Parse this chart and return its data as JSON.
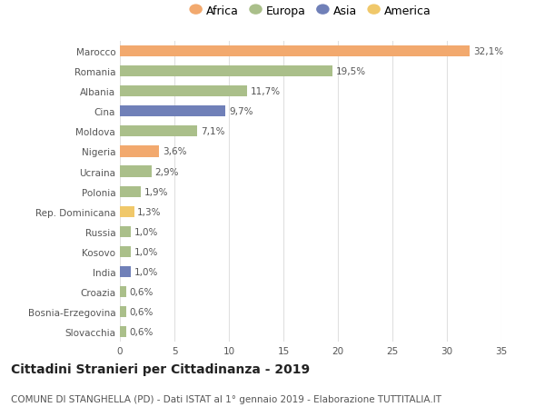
{
  "countries": [
    "Marocco",
    "Romania",
    "Albania",
    "Cina",
    "Moldova",
    "Nigeria",
    "Ucraina",
    "Polonia",
    "Rep. Dominicana",
    "Russia",
    "Kosovo",
    "India",
    "Croazia",
    "Bosnia-Erzegovina",
    "Slovacchia"
  ],
  "values": [
    32.1,
    19.5,
    11.7,
    9.7,
    7.1,
    3.6,
    2.9,
    1.9,
    1.3,
    1.0,
    1.0,
    1.0,
    0.6,
    0.6,
    0.6
  ],
  "labels": [
    "32,1%",
    "19,5%",
    "11,7%",
    "9,7%",
    "7,1%",
    "3,6%",
    "2,9%",
    "1,9%",
    "1,3%",
    "1,0%",
    "1,0%",
    "1,0%",
    "0,6%",
    "0,6%",
    "0,6%"
  ],
  "continents": [
    "Africa",
    "Europa",
    "Europa",
    "Asia",
    "Europa",
    "Africa",
    "Europa",
    "Europa",
    "America",
    "Europa",
    "Europa",
    "Asia",
    "Europa",
    "Europa",
    "Europa"
  ],
  "continent_colors": {
    "Africa": "#F2A96E",
    "Europa": "#AABF8A",
    "Asia": "#7080B8",
    "America": "#F0C86A"
  },
  "legend_order": [
    "Africa",
    "Europa",
    "Asia",
    "America"
  ],
  "title": "Cittadini Stranieri per Cittadinanza - 2019",
  "subtitle": "COMUNE DI STANGHELLA (PD) - Dati ISTAT al 1° gennaio 2019 - Elaborazione TUTTITALIA.IT",
  "xlim": [
    0,
    35
  ],
  "xticks": [
    0,
    5,
    10,
    15,
    20,
    25,
    30,
    35
  ],
  "background_color": "#ffffff",
  "grid_color": "#e0e0e0",
  "label_fontsize": 7.5,
  "tick_fontsize": 7.5,
  "legend_fontsize": 9,
  "title_fontsize": 10,
  "subtitle_fontsize": 7.5
}
